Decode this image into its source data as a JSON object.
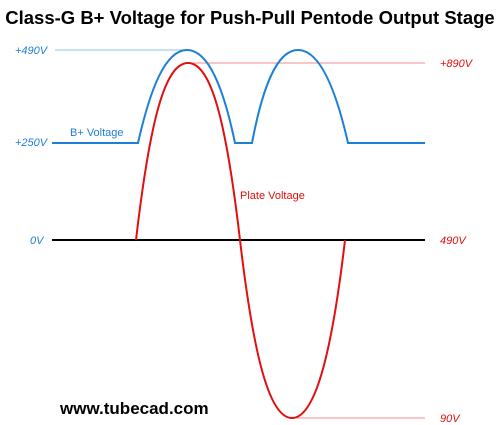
{
  "header": {
    "title": "Class-G B+ Voltage for Push-Pull Pentode Output Stage"
  },
  "left_labels": {
    "top": "+490V",
    "middle": "+250V",
    "zero": "0V"
  },
  "right_labels": {
    "top": "+890V",
    "middle": "490V",
    "bottom": "90V"
  },
  "curves": {
    "supply": "B+ Voltage",
    "plate": "Plate Voltage"
  },
  "footer": {
    "url": "www.tubecad.com"
  }
}
